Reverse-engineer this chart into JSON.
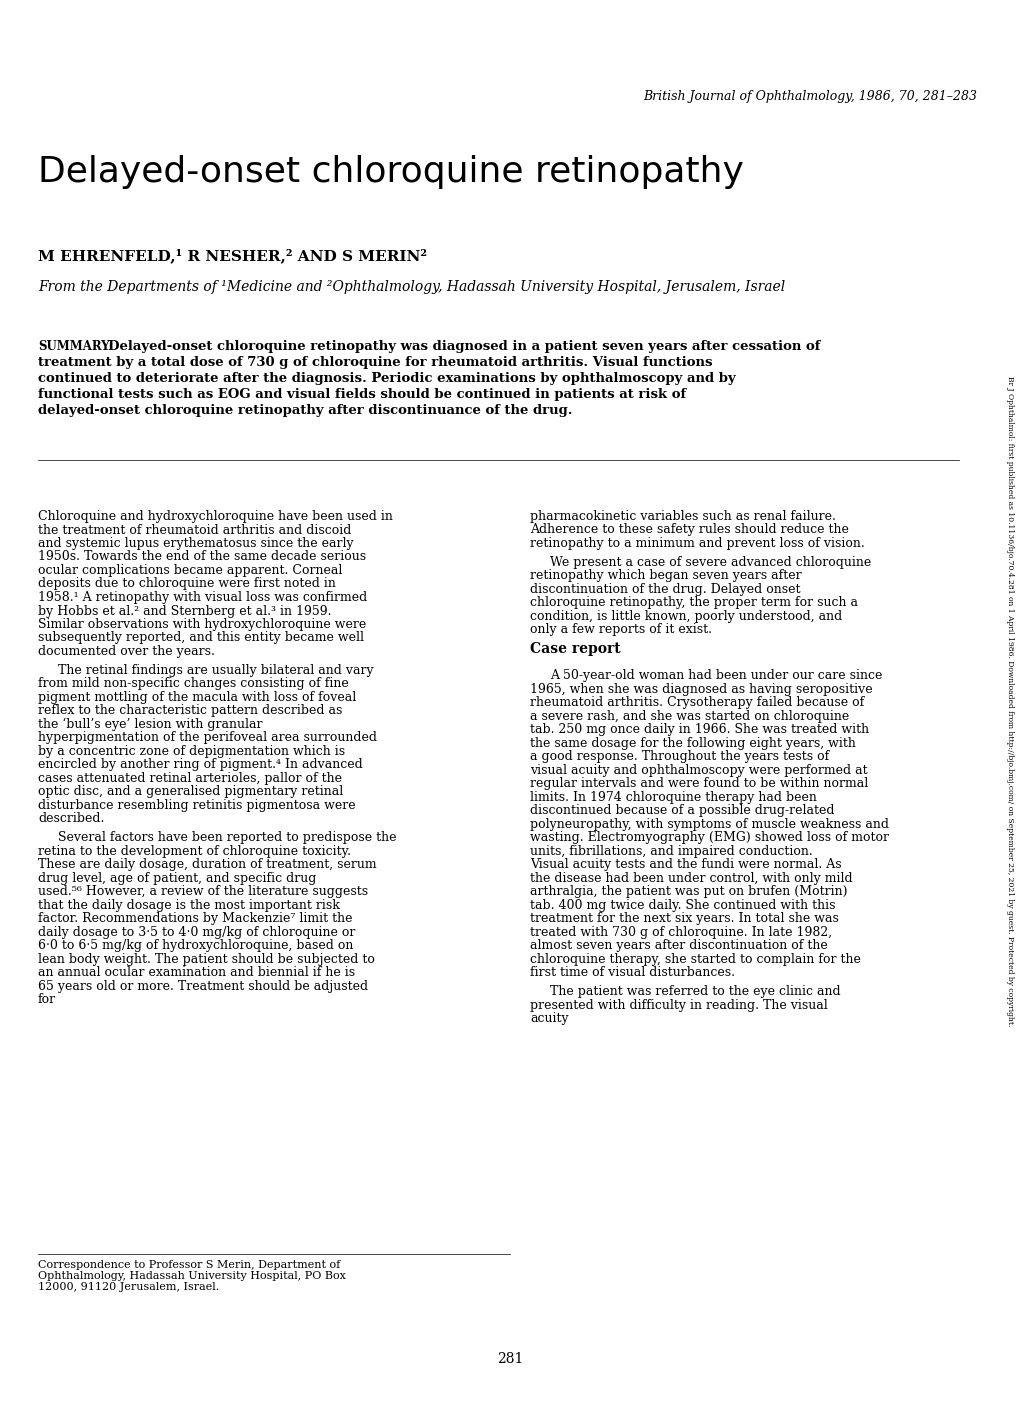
{
  "background_color": "#ffffff",
  "page_width": 10.2,
  "page_height": 14.02,
  "journal_header": "British Journal of Ophthalmology, 1986, 70, 281–283",
  "side_text": "Br J Ophthalmol: first published as 10.1136/bjo.70.4.281 on 1 April 1986. Downloaded from http://bjo.bmj.com/ on September 25, 2021 by guest. Protected by copyright.",
  "title": "Delayed-onset chloroquine retinopathy",
  "authors": "M EHRENFELD,¹ R NESHER,² AND S MERIN²",
  "affiliation": "From the Departments of ¹Medicine and ²Ophthalmology, Hadassah University Hospital, Jerusalem, Israel",
  "summary_label": "SUMMARY",
  "summary_text": "Delayed-onset chloroquine retinopathy was diagnosed in a patient seven years after cessation of treatment by a total dose of 730 g of chloroquine for rheumatoid arthritis. Visual functions continued to deteriorate after the diagnosis. Periodic examinations by ophthalmoscopy and by functional tests such as EOG and visual fields should be continued in patients at risk of delayed-onset chloroquine retinopathy after discontinuance of the drug.",
  "col1_paragraphs": [
    "Chloroquine and hydroxychloroquine have been used in the treatment of rheumatoid arthritis and discoid and systemic lupus erythematosus since the early 1950s. Towards the end of the same decade serious ocular complications became apparent. Corneal deposits due to chloroquine were first noted in 1958.¹ A retinopathy with visual loss was confirmed by Hobbs et al.² and Sternberg et al.³ in 1959. Similar observations with hydroxychloroquine were subsequently reported, and this entity became well documented over the years.",
    "The retinal findings are usually bilateral and vary from mild non-specific changes consisting of fine pigment mottling of the macula with loss of foveal reflex to the characteristic pattern described as the ‘bull’s eye’ lesion with granular hyperpigmentation of the perifoveal area surrounded by a concentric zone of depigmentation which is encircled by another ring of pigment.⁴ In advanced cases attenuated retinal arterioles, pallor of the optic disc, and a generalised pigmentary retinal disturbance resembling retinitis pigmentosa were described.",
    "Several factors have been reported to predispose the retina to the development of chloroquine toxicity. These are daily dosage, duration of treatment, serum drug level, age of patient, and specific drug used.⁵⁶ However, a review of the literature suggests that the daily dosage is the most important risk factor. Recommendations by Mackenzie⁷ limit the daily dosage to 3·5 to 4·0 mg/kg of chloroquine or 6·0 to 6·5 mg/kg of hydroxychloroquine, based on lean body weight. The patient should be subjected to an annual ocular examination and biennial if he is 65 years old or more. Treatment should be adjusted for"
  ],
  "col2_paragraphs": [
    "pharmacokinetic variables such as renal failure. Adherence to these safety rules should reduce the retinopathy to a minimum and prevent loss of vision.",
    "We present a case of severe advanced chloroquine retinopathy which began seven years after discontinuation of the drug. Delayed onset chloroquine retinopathy, the proper term for such a condition, is little known, poorly understood, and only a few reports of it exist.",
    "Case report",
    "A 50-year-old woman had been under our care since 1965, when she was diagnosed as having seropositive rheumatoid arthritis. Crysotherapy failed because of a severe rash, and she was started on chloroquine tab. 250 mg once daily in 1966. She was treated with the same dosage for the following eight years, with a good response. Throughout the years tests of visual acuity and ophthalmoscopy were performed at regular intervals and were found to be within normal limits. In 1974 chloroquine therapy had been discontinued because of a possible drug-related polyneuropathy, with symptoms of muscle weakness and wasting. Electromyography (EMG) showed loss of motor units, fibrillations, and impaired conduction. Visual acuity tests and the fundi were normal. As the disease had been under control, with only mild arthralgia, the patient was put on brufen (Motrin) tab. 400 mg twice daily. She continued with this treatment for the next six years. In total she was treated with 730 g of chloroquine. In late 1982, almost seven years after discontinuation of the chloroquine therapy, she started to complain for the first time of visual disturbances.",
    "The patient was referred to the eye clinic and presented with difficulty in reading. The visual acuity"
  ],
  "footnote": "Correspondence to Professor S Merin, Department of Ophthalmology, Hadassah University Hospital, PO Box 12000, 91120 Jerusalem, Israel.",
  "page_number": "281"
}
